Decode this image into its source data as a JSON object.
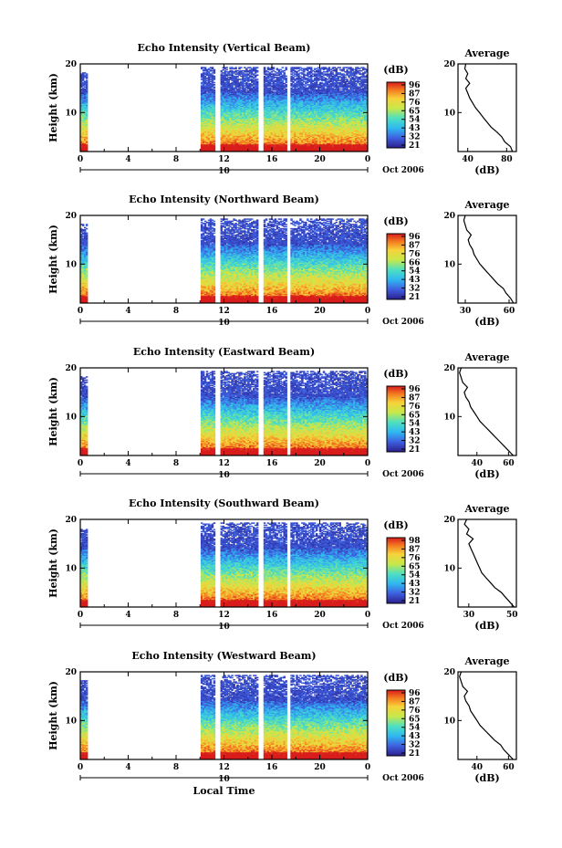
{
  "chart_data": [
    {
      "type": "heatmap",
      "title": "Echo Intensity (Vertical Beam)",
      "ylabel": "Height (km)",
      "x_ticks": [
        "0",
        "4",
        "8",
        "12",
        "16",
        "20",
        "0"
      ],
      "y_ticks": [
        "20",
        "10"
      ],
      "date_label": "10",
      "month_label": "Oct 2006",
      "xlim": [
        0,
        24
      ],
      "ylim": [
        2,
        20
      ],
      "colorbar": {
        "unit": "(dB)",
        "ticks": [
          "96",
          "87",
          "76",
          "65",
          "54",
          "43",
          "32",
          "21"
        ],
        "range": [
          21,
          96
        ]
      },
      "gaps_hours": [
        [
          0.6,
          10.0
        ],
        [
          11.3,
          11.7
        ],
        [
          14.9,
          15.3
        ],
        [
          17.2,
          17.6
        ]
      ],
      "average": {
        "title": "Average",
        "xlabel": "(dB)",
        "x_ticks": [
          "40",
          "80"
        ],
        "xlim": [
          30,
          90
        ],
        "y_ticks": [
          "20",
          "10"
        ],
        "profile": [
          [
            2,
            86
          ],
          [
            3,
            84
          ],
          [
            4,
            78
          ],
          [
            5,
            75
          ],
          [
            6,
            70
          ],
          [
            7,
            64
          ],
          [
            8,
            60
          ],
          [
            9,
            56
          ],
          [
            10,
            52
          ],
          [
            11,
            48
          ],
          [
            12,
            45
          ],
          [
            13,
            42
          ],
          [
            14,
            40
          ],
          [
            15,
            38
          ],
          [
            16,
            42
          ],
          [
            17,
            38
          ],
          [
            18,
            40
          ],
          [
            19,
            37
          ],
          [
            20,
            38
          ]
        ]
      }
    },
    {
      "type": "heatmap",
      "title": "Echo Intensity (Northward Beam)",
      "ylabel": "Height (km)",
      "x_ticks": [
        "0",
        "4",
        "8",
        "12",
        "16",
        "20",
        "0"
      ],
      "y_ticks": [
        "20",
        "10"
      ],
      "date_label": "10",
      "month_label": "Oct 2006",
      "xlim": [
        0,
        24
      ],
      "ylim": [
        2,
        20
      ],
      "colorbar": {
        "unit": "(dB)",
        "ticks": [
          "96",
          "87",
          "76",
          "66",
          "54",
          "43",
          "32",
          "21"
        ],
        "range": [
          21,
          96
        ]
      },
      "gaps_hours": [
        [
          0.6,
          10.0
        ],
        [
          11.3,
          11.7
        ],
        [
          14.9,
          15.3
        ],
        [
          17.2,
          17.6
        ]
      ],
      "average": {
        "title": "Average",
        "xlabel": "(dB)",
        "x_ticks": [
          "30",
          "60"
        ],
        "xlim": [
          25,
          65
        ],
        "y_ticks": [
          "20",
          "10"
        ],
        "profile": [
          [
            2,
            63
          ],
          [
            3,
            61
          ],
          [
            4,
            58
          ],
          [
            5,
            56
          ],
          [
            6,
            52
          ],
          [
            7,
            49
          ],
          [
            8,
            46
          ],
          [
            9,
            43
          ],
          [
            10,
            40
          ],
          [
            11,
            38
          ],
          [
            12,
            36
          ],
          [
            13,
            35
          ],
          [
            14,
            33
          ],
          [
            15,
            32
          ],
          [
            16,
            34
          ],
          [
            17,
            31
          ],
          [
            18,
            30
          ],
          [
            19,
            29
          ],
          [
            20,
            30
          ]
        ]
      }
    },
    {
      "type": "heatmap",
      "title": "Echo Intensity (Eastward Beam)",
      "ylabel": "Height (km)",
      "x_ticks": [
        "0",
        "4",
        "8",
        "12",
        "16",
        "20",
        "0"
      ],
      "y_ticks": [
        "20",
        "10"
      ],
      "date_label": "10",
      "month_label": "Oct 2006",
      "xlim": [
        0,
        24
      ],
      "ylim": [
        2,
        20
      ],
      "colorbar": {
        "unit": "(dB)",
        "ticks": [
          "96",
          "87",
          "76",
          "65",
          "54",
          "43",
          "32",
          "21"
        ],
        "range": [
          21,
          96
        ]
      },
      "gaps_hours": [
        [
          0.6,
          10.0
        ],
        [
          11.3,
          11.7
        ],
        [
          14.9,
          15.3
        ],
        [
          17.2,
          17.6
        ]
      ],
      "average": {
        "title": "Average",
        "xlabel": "(dB)",
        "x_ticks": [
          "40",
          "60"
        ],
        "xlim": [
          28,
          65
        ],
        "y_ticks": [
          "20",
          "10"
        ],
        "profile": [
          [
            2,
            63
          ],
          [
            3,
            60
          ],
          [
            4,
            57
          ],
          [
            5,
            54
          ],
          [
            6,
            51
          ],
          [
            7,
            48
          ],
          [
            8,
            45
          ],
          [
            9,
            42
          ],
          [
            10,
            40
          ],
          [
            11,
            38
          ],
          [
            12,
            36
          ],
          [
            13,
            35
          ],
          [
            14,
            33
          ],
          [
            15,
            32
          ],
          [
            16,
            34
          ],
          [
            17,
            31
          ],
          [
            18,
            30
          ],
          [
            19,
            29
          ],
          [
            20,
            30
          ]
        ]
      }
    },
    {
      "type": "heatmap",
      "title": "Echo Intensity (Southward Beam)",
      "ylabel": "Height (km)",
      "x_ticks": [
        "0",
        "4",
        "8",
        "12",
        "16",
        "20",
        "0"
      ],
      "y_ticks": [
        "20",
        "10"
      ],
      "date_label": "10",
      "month_label": "Oct 2006",
      "xlim": [
        0,
        24
      ],
      "ylim": [
        2,
        20
      ],
      "colorbar": {
        "unit": "(dB)",
        "ticks": [
          "98",
          "87",
          "76",
          "65",
          "54",
          "43",
          "32",
          "21"
        ],
        "range": [
          21,
          98
        ]
      },
      "gaps_hours": [
        [
          0.6,
          10.0
        ],
        [
          11.3,
          11.7
        ],
        [
          14.9,
          15.3
        ],
        [
          17.2,
          17.6
        ]
      ],
      "average": {
        "title": "Average",
        "xlabel": "(dB)",
        "x_ticks": [
          "30",
          "50"
        ],
        "xlim": [
          25,
          52
        ],
        "y_ticks": [
          "20",
          "10"
        ],
        "profile": [
          [
            2,
            51
          ],
          [
            3,
            49
          ],
          [
            4,
            47
          ],
          [
            5,
            45
          ],
          [
            6,
            42
          ],
          [
            7,
            40
          ],
          [
            8,
            38
          ],
          [
            9,
            36
          ],
          [
            10,
            35
          ],
          [
            11,
            34
          ],
          [
            12,
            33
          ],
          [
            13,
            32
          ],
          [
            14,
            31
          ],
          [
            15,
            30
          ],
          [
            16,
            32
          ],
          [
            17,
            29
          ],
          [
            18,
            30
          ],
          [
            19,
            28
          ],
          [
            20,
            29
          ]
        ]
      }
    },
    {
      "type": "heatmap",
      "title": "Echo Intensity (Westward Beam)",
      "ylabel": "Height (km)",
      "x_ticks": [
        "0",
        "4",
        "8",
        "12",
        "16",
        "20",
        "0"
      ],
      "y_ticks": [
        "20",
        "10"
      ],
      "date_label": "10",
      "month_label": "Oct 2006",
      "xlabel": "Local Time",
      "xlim": [
        0,
        24
      ],
      "ylim": [
        2,
        20
      ],
      "colorbar": {
        "unit": "(dB)",
        "ticks": [
          "96",
          "87",
          "76",
          "65",
          "54",
          "43",
          "32",
          "21"
        ],
        "range": [
          21,
          96
        ]
      },
      "gaps_hours": [
        [
          0.6,
          10.0
        ],
        [
          11.3,
          11.7
        ],
        [
          14.9,
          15.3
        ],
        [
          17.2,
          17.6
        ]
      ],
      "average": {
        "title": "Average",
        "xlabel": "(dB)",
        "x_ticks": [
          "40",
          "60"
        ],
        "xlim": [
          28,
          65
        ],
        "y_ticks": [
          "20",
          "10"
        ],
        "profile": [
          [
            2,
            63
          ],
          [
            3,
            60
          ],
          [
            4,
            57
          ],
          [
            5,
            55
          ],
          [
            6,
            51
          ],
          [
            7,
            48
          ],
          [
            8,
            45
          ],
          [
            9,
            42
          ],
          [
            10,
            40
          ],
          [
            11,
            38
          ],
          [
            12,
            36
          ],
          [
            13,
            35
          ],
          [
            14,
            33
          ],
          [
            15,
            32
          ],
          [
            16,
            34
          ],
          [
            17,
            31
          ],
          [
            18,
            30
          ],
          [
            19,
            29
          ],
          [
            20,
            30
          ]
        ]
      }
    }
  ]
}
